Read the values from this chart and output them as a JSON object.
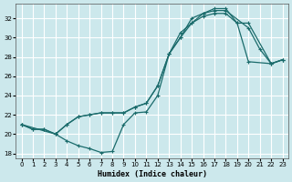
{
  "xlabel": "Humidex (Indice chaleur)",
  "bg_color": "#cce8ec",
  "grid_color": "#ffffff",
  "line_color": "#1a6b6b",
  "xlim": [
    -0.5,
    23.5
  ],
  "ylim": [
    17.5,
    33.5
  ],
  "xticks": [
    0,
    1,
    2,
    3,
    4,
    5,
    6,
    7,
    8,
    9,
    10,
    11,
    12,
    13,
    14,
    15,
    16,
    17,
    18,
    19,
    20,
    21,
    22,
    23
  ],
  "yticks": [
    18,
    20,
    22,
    24,
    26,
    28,
    30,
    32
  ],
  "line1_x": [
    0,
    1,
    2,
    3,
    4,
    5,
    6,
    7,
    8,
    9,
    10,
    11,
    12,
    13,
    14,
    15,
    16,
    17,
    18,
    20,
    21,
    22,
    23
  ],
  "line1_y": [
    21.0,
    20.5,
    20.5,
    20.0,
    19.3,
    18.8,
    18.5,
    18.1,
    18.2,
    21.0,
    22.2,
    22.3,
    24.0,
    28.3,
    30.0,
    31.5,
    32.5,
    32.8,
    32.8,
    31.0,
    28.8,
    27.3,
    27.7
  ],
  "line2_x": [
    0,
    1,
    2,
    3,
    4,
    5,
    6,
    7,
    8,
    9,
    10,
    11,
    12,
    13,
    14,
    15,
    16,
    17,
    18,
    19,
    20,
    22,
    23
  ],
  "line2_y": [
    21.0,
    20.5,
    20.5,
    20.0,
    21.0,
    21.8,
    22.0,
    22.2,
    22.2,
    22.2,
    22.8,
    23.2,
    25.0,
    28.3,
    30.0,
    32.0,
    32.5,
    33.0,
    33.0,
    31.5,
    31.5,
    27.3,
    27.7
  ],
  "line3_x": [
    0,
    3,
    4,
    5,
    6,
    7,
    8,
    9,
    10,
    11,
    12,
    13,
    14,
    15,
    16,
    17,
    18,
    19,
    20,
    22,
    23
  ],
  "line3_y": [
    21.0,
    20.0,
    21.0,
    21.8,
    22.0,
    22.2,
    22.2,
    22.2,
    22.8,
    23.2,
    25.0,
    28.3,
    30.5,
    31.5,
    32.2,
    32.5,
    32.5,
    31.5,
    27.5,
    27.3,
    27.7
  ]
}
